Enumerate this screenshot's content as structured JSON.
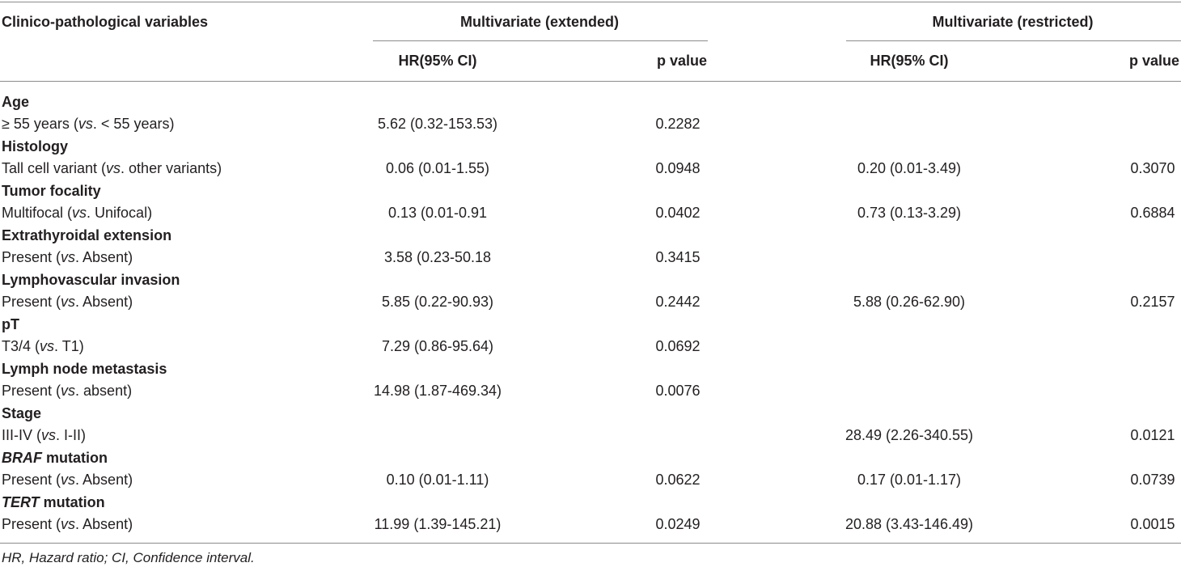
{
  "table": {
    "header": {
      "variables_label": "Clinico-pathological variables",
      "group_extended": "Multivariate (extended)",
      "group_restricted": "Multivariate (restricted)",
      "hr_label": "HR(95% CI)",
      "p_label": "p value"
    },
    "rows": [
      {
        "category": "Age",
        "label_parts": [
          "≥ 55 years (",
          "vs",
          ". < 55 years)"
        ],
        "ext_hr": "5.62 (0.32-153.53)",
        "ext_p": "0.2282",
        "res_hr": "",
        "res_p": ""
      },
      {
        "category": "Histology",
        "label_parts": [
          "Tall cell variant (",
          "vs",
          ". other variants)"
        ],
        "ext_hr": "0.06 (0.01-1.55)",
        "ext_p": "0.0948",
        "res_hr": "0.20 (0.01-3.49)",
        "res_p": "0.3070"
      },
      {
        "category": "Tumor focality",
        "label_parts": [
          "Multifocal (",
          "vs",
          ". Unifocal)"
        ],
        "ext_hr": "0.13 (0.01-0.91",
        "ext_p": "0.0402",
        "res_hr": "0.73 (0.13-3.29)",
        "res_p": "0.6884"
      },
      {
        "category": "Extrathyroidal extension",
        "label_parts": [
          "Present (",
          "vs",
          ". Absent)"
        ],
        "ext_hr": "3.58 (0.23-50.18",
        "ext_p": "0.3415",
        "res_hr": "",
        "res_p": ""
      },
      {
        "category": "Lymphovascular invasion",
        "label_parts": [
          "Present (",
          "vs",
          ". Absent)"
        ],
        "ext_hr": "5.85 (0.22-90.93)",
        "ext_p": "0.2442",
        "res_hr": "5.88 (0.26-62.90)",
        "res_p": "0.2157"
      },
      {
        "category": "pT",
        "label_parts": [
          "T3/4 (",
          "vs",
          ". T1)"
        ],
        "ext_hr": "7.29 (0.86-95.64)",
        "ext_p": "0.0692",
        "res_hr": "",
        "res_p": ""
      },
      {
        "category": "Lymph node metastasis",
        "label_parts": [
          "Present (",
          "vs",
          ". absent)"
        ],
        "ext_hr": "14.98 (1.87-469.34)",
        "ext_p": "0.0076",
        "res_hr": "",
        "res_p": ""
      },
      {
        "category": "Stage",
        "label_parts": [
          "III-IV (",
          "vs",
          ". I-II)"
        ],
        "ext_hr": "",
        "ext_p": "",
        "res_hr": "28.49 (2.26-340.55)",
        "res_p": "0.0121"
      },
      {
        "category_italic": "BRAF",
        "category": " mutation",
        "label_parts": [
          "Present (",
          "vs",
          ". Absent)"
        ],
        "ext_hr": "0.10 (0.01-1.11)",
        "ext_p": "0.0622",
        "res_hr": "0.17 (0.01-1.17)",
        "res_p": "0.0739"
      },
      {
        "category_italic": "TERT",
        "category": " mutation",
        "label_parts": [
          "Present (",
          "vs",
          ". Absent)"
        ],
        "ext_hr": "11.99 (1.39-145.21)",
        "ext_p": "0.0249",
        "res_hr": "20.88 (3.43-146.49)",
        "res_p": "0.0015"
      }
    ],
    "footnote": "HR, Hazard ratio; CI, Confidence interval."
  },
  "colors": {
    "text": "#231f20",
    "rule": "#8c8c8c"
  }
}
